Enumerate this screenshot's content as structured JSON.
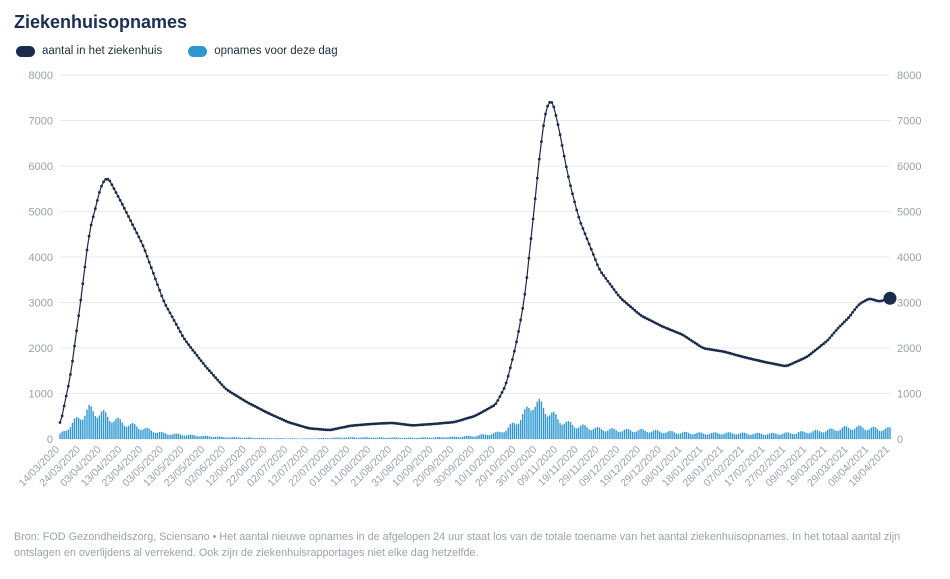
{
  "header": {
    "title": "Ziekenhuisopnames"
  },
  "legend": [
    {
      "label": "aantal in het ziekenhuis",
      "color": "#1b2b4d"
    },
    {
      "label": "opnames voor deze dag",
      "color": "#2e97d1"
    }
  ],
  "footer": {
    "text": "Bron: FOD Gezondheidszorg, Sciensano • Het aantal nieuwe opnames in de afgelopen 24 uur staat los van de totale toename van het aantal ziekenhuisopnames. In het totaal aantal zijn ontslagen en overlijdens al verrekend. Ook zijn de ziekenhuisrapportages niet elke dag hetzelfde."
  },
  "chart_data": {
    "type": "line+bar",
    "title": "Ziekenhuisopnames",
    "grid": "horizontal",
    "legend_position": "top-left",
    "ylim": [
      0,
      8000
    ],
    "yticks": [
      0,
      1000,
      2000,
      3000,
      4000,
      5000,
      6000,
      7000,
      8000
    ],
    "y_axis_sides": [
      "left",
      "right"
    ],
    "x_start_date": "14/03/2020",
    "x_end_date": "18/04/2021",
    "x_tick_labels": [
      "14/03/2020",
      "24/03/2020",
      "03/04/2020",
      "13/04/2020",
      "23/04/2020",
      "03/05/2020",
      "13/05/2020",
      "23/05/2020",
      "02/06/2020",
      "12/06/2020",
      "22/06/2020",
      "02/07/2020",
      "12/07/2020",
      "22/07/2020",
      "01/08/2020",
      "11/08/2020",
      "21/08/2020",
      "31/08/2020",
      "10/09/2020",
      "20/09/2020",
      "30/09/2020",
      "10/10/2020",
      "20/10/2020",
      "30/10/2020",
      "09/11/2020",
      "19/11/2020",
      "29/11/2020",
      "09/12/2020",
      "19/12/2020",
      "29/12/2020",
      "08/01/2021",
      "18/01/2021",
      "28/01/2021",
      "07/02/2021",
      "17/02/2021",
      "27/02/2021",
      "09/03/2021",
      "19/03/2021",
      "29/03/2021",
      "08/04/2021",
      "18/04/2021"
    ],
    "series": [
      {
        "name": "aantal in het ziekenhuis",
        "type": "line",
        "color": "#1b2b4d",
        "axis": "left"
      },
      {
        "name": "opnames voor deze dag",
        "type": "bar",
        "color": "#2e97d1",
        "axis": "left"
      }
    ],
    "points": [
      {
        "date": "14/03/2020",
        "in_hospital": 290,
        "admissions": 100
      },
      {
        "date": "19/03/2020",
        "in_hospital": 1380,
        "admissions": 290
      },
      {
        "date": "24/03/2020",
        "in_hospital": 3042,
        "admissions": 499
      },
      {
        "date": "28/03/2020",
        "in_hospital": 4524,
        "admissions": 629
      },
      {
        "date": "03/04/2020",
        "in_hospital": 5600,
        "admissions": 560
      },
      {
        "date": "06/04/2020",
        "in_hospital": 5759,
        "admissions": 480
      },
      {
        "date": "13/04/2020",
        "in_hospital": 5161,
        "admissions": 360
      },
      {
        "date": "23/04/2020",
        "in_hospital": 4260,
        "admissions": 230
      },
      {
        "date": "03/05/2020",
        "in_hospital": 3022,
        "admissions": 120
      },
      {
        "date": "13/05/2020",
        "in_hospital": 2190,
        "admissions": 90
      },
      {
        "date": "23/05/2020",
        "in_hospital": 1602,
        "admissions": 60
      },
      {
        "date": "02/06/2020",
        "in_hospital": 1094,
        "admissions": 40
      },
      {
        "date": "12/06/2020",
        "in_hospital": 812,
        "admissions": 30
      },
      {
        "date": "22/06/2020",
        "in_hospital": 577,
        "admissions": 20
      },
      {
        "date": "02/07/2020",
        "in_hospital": 370,
        "admissions": 15
      },
      {
        "date": "12/07/2020",
        "in_hospital": 235,
        "admissions": 12
      },
      {
        "date": "22/07/2020",
        "in_hospital": 195,
        "admissions": 25
      },
      {
        "date": "01/08/2020",
        "in_hospital": 291,
        "admissions": 35
      },
      {
        "date": "11/08/2020",
        "in_hospital": 330,
        "admissions": 33
      },
      {
        "date": "21/08/2020",
        "in_hospital": 355,
        "admissions": 30
      },
      {
        "date": "31/08/2020",
        "in_hospital": 298,
        "admissions": 26
      },
      {
        "date": "10/09/2020",
        "in_hospital": 331,
        "admissions": 35
      },
      {
        "date": "20/09/2020",
        "in_hospital": 371,
        "admissions": 46
      },
      {
        "date": "30/09/2020",
        "in_hospital": 506,
        "admissions": 68
      },
      {
        "date": "10/10/2020",
        "in_hospital": 757,
        "admissions": 125
      },
      {
        "date": "15/10/2020",
        "in_hospital": 1200,
        "admissions": 200
      },
      {
        "date": "20/10/2020",
        "in_hospital": 2111,
        "admissions": 380
      },
      {
        "date": "24/10/2020",
        "in_hospital": 3124,
        "admissions": 550
      },
      {
        "date": "28/10/2020",
        "in_hospital": 4827,
        "admissions": 800
      },
      {
        "date": "31/10/2020",
        "in_hospital": 6187,
        "admissions": 740
      },
      {
        "date": "03/11/2020",
        "in_hospital": 7231,
        "admissions": 650
      },
      {
        "date": "06/11/2020",
        "in_hospital": 7485,
        "admissions": 540
      },
      {
        "date": "09/11/2020",
        "in_hospital": 6925,
        "admissions": 430
      },
      {
        "date": "14/11/2020",
        "in_hospital": 5745,
        "admissions": 330
      },
      {
        "date": "19/11/2020",
        "in_hospital": 4855,
        "admissions": 280
      },
      {
        "date": "29/11/2020",
        "in_hospital": 3715,
        "admissions": 215
      },
      {
        "date": "09/12/2020",
        "in_hospital": 3102,
        "admissions": 190
      },
      {
        "date": "19/12/2020",
        "in_hospital": 2712,
        "admissions": 185
      },
      {
        "date": "29/12/2020",
        "in_hospital": 2480,
        "admissions": 160
      },
      {
        "date": "08/01/2021",
        "in_hospital": 2293,
        "admissions": 135
      },
      {
        "date": "18/01/2021",
        "in_hospital": 1994,
        "admissions": 120
      },
      {
        "date": "28/01/2021",
        "in_hospital": 1920,
        "admissions": 128
      },
      {
        "date": "07/02/2021",
        "in_hospital": 1795,
        "admissions": 118
      },
      {
        "date": "17/02/2021",
        "in_hospital": 1688,
        "admissions": 112
      },
      {
        "date": "27/02/2021",
        "in_hospital": 1598,
        "admissions": 122
      },
      {
        "date": "09/03/2021",
        "in_hospital": 1805,
        "admissions": 152
      },
      {
        "date": "19/03/2021",
        "in_hospital": 2167,
        "admissions": 185
      },
      {
        "date": "24/03/2021",
        "in_hospital": 2440,
        "admissions": 220
      },
      {
        "date": "29/03/2021",
        "in_hospital": 2661,
        "admissions": 247
      },
      {
        "date": "03/04/2021",
        "in_hospital": 2962,
        "admissions": 251
      },
      {
        "date": "08/04/2021",
        "in_hospital": 3089,
        "admissions": 235
      },
      {
        "date": "13/04/2021",
        "in_hospital": 3022,
        "admissions": 212
      },
      {
        "date": "18/04/2021",
        "in_hospital": 3098,
        "admissions": 221
      }
    ],
    "latest": {
      "date": "18/04/2021",
      "in_hospital": 3098
    }
  }
}
